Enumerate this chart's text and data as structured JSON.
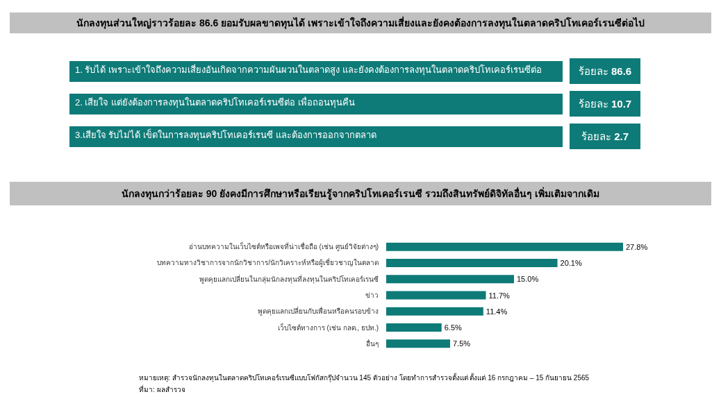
{
  "chart_data": [
    {
      "type": "other",
      "title": "นักลงทุนส่วนใหญ่ราวร้อยละ 86.6 ยอมรับผลขาดทุนได้ เพราะเข้าใจถึงความเสี่ยงและยังคงต้องการลงทุนในตลาดคริปโทเคอร์เรนซีต่อไป",
      "categories": [
        "1. รับได้ เพราะเข้าใจถึงความเสี่ยงอันเกิดจากความผันผวนในตลาดสูง และยังคงต้องการลงทุนในตลาดคริปโทเคอร์เรนซีต่อ",
        "2. เสียใจ แต่ยังต้องการลงทุนในตลาดคริปโทเคอร์เรนซีต่อ เพื่อถอนทุนคืน",
        "3.เสียใจ รับไม่ได้ เข็ดในการลงทุนคริปโทเคอร์เรนซี และต้องการออกจากตลาด"
      ],
      "values": [
        86.6,
        10.7,
        2.7
      ],
      "value_labels": [
        "ร้อยละ 86.6",
        "ร้อยละ 10.7",
        "ร้อยละ 2.7"
      ],
      "color": "#0e7b78"
    },
    {
      "type": "bar",
      "orientation": "horizontal",
      "title": "นักลงทุนกว่าร้อยละ 90 ยังคงมีการศึกษาหรือเรียนรู้จากคริปโทเคอร์เรนซี รวมถึงสินทรัพย์ดิจิทัลอื่นๆ เพิ่มเติมจากเดิม",
      "categories": [
        "อ่านบทความในเว็บไซต์หรือเพจที่น่าเชื่อถือ (เช่น ศูนย์วิจัยต่างๆ)",
        "บทความทางวิชาการจากนักวิชาการ/นักวิเคราะห์หรือผู้เชี่ยวชาญในตลาด",
        "พูดคุยแลกเปลี่ยนในกลุ่มนักลงทุนที่ลงทุนในคริปโทเคอร์เรนซี",
        "ข่าว",
        "พูดคุยแลกเปลี่ยนกับเพื่อนหรือคนรอบข้าง",
        "เว็บไซต์ทางการ (เช่น กลต., ธปท.)",
        "อื่นๆ"
      ],
      "values": [
        27.8,
        20.1,
        15.0,
        11.7,
        11.4,
        6.5,
        7.5
      ],
      "value_labels": [
        "27.8%",
        "20.1%",
        "15.0%",
        "11.7%",
        "11.4%",
        "6.5%",
        "7.5%"
      ],
      "color": "#0e7b78",
      "annotations": [
        "หมายเหตุ: สำรวจนักลงทุนในตลาดคริปโทเคอร์เรนซีแบบโฟกัสกรุ๊ปจำนวน 145 ตัวอย่าง โดยทำการสำรวจตั้งแต่ ตั้งแต่ 16 กรกฎาคม – 15 กันยายน 2565",
        "ที่มา: ผลสำรวจ"
      ]
    }
  ]
}
